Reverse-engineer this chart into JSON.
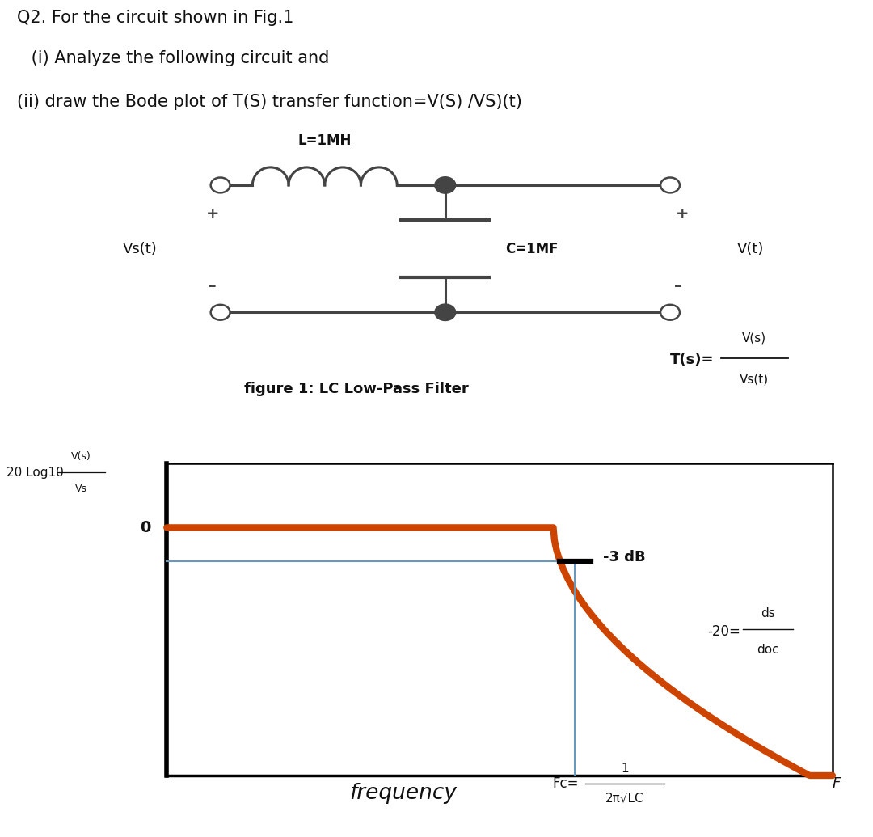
{
  "title_line1": "Q2. For the circuit shown in Fig.1",
  "title_line2": " (i) Analyze the following circuit and",
  "title_line3": "(ii) draw the Bode plot of T(S) transfer function=V(S) /VS)(t)",
  "bg_color": "#ffffff",
  "circuit_label_L": "L=1MH",
  "circuit_label_C": "C=1MF",
  "circuit_label_Vs": "Vs(t)",
  "circuit_label_V": "V(t)",
  "figure_caption": "figure 1: LC Low-Pass Filter",
  "transfer_func_label": "T(s)=",
  "transfer_func_num": "V(s)",
  "transfer_func_den": "Vs(t)",
  "ylabel_prefix": "20 Log10",
  "ylabel_frac_num": "V(s)",
  "ylabel_frac_den": "Vs",
  "xlabel": "frequency",
  "fc_label": "Fc=",
  "fc_frac_num": "1",
  "fc_frac_den": "2π√LC",
  "f_label": "F",
  "neg3db_label": "-3 dB",
  "slope_label_num": "ds",
  "slope_label_den": "doc",
  "slope_prefix": "-20=",
  "zero_label": "0",
  "bode_color": "#cc4400",
  "line_color": "#6699bb",
  "axis_color": "#000000",
  "text_color": "#111111",
  "wire_color": "#444444"
}
